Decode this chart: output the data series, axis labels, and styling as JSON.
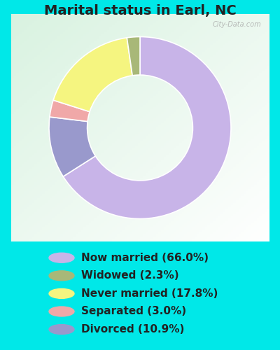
{
  "title": "Marital status in Earl, NC",
  "slices": [
    66.0,
    10.9,
    3.0,
    17.8,
    2.3
  ],
  "colors": [
    "#c8b4e8",
    "#9999cc",
    "#f0a8a8",
    "#f5f580",
    "#a8b878"
  ],
  "labels": [
    "Now married (66.0%)",
    "Widowed (2.3%)",
    "Never married (17.8%)",
    "Separated (3.0%)",
    "Divorced (10.9%)"
  ],
  "legend_colors": [
    "#c8b4e8",
    "#a8b878",
    "#f5f580",
    "#f0a8a8",
    "#9999cc"
  ],
  "bg_outer": "#00e8e8",
  "title_color": "#222222",
  "title_fontsize": 14,
  "legend_fontsize": 11,
  "watermark": "City-Data.com"
}
